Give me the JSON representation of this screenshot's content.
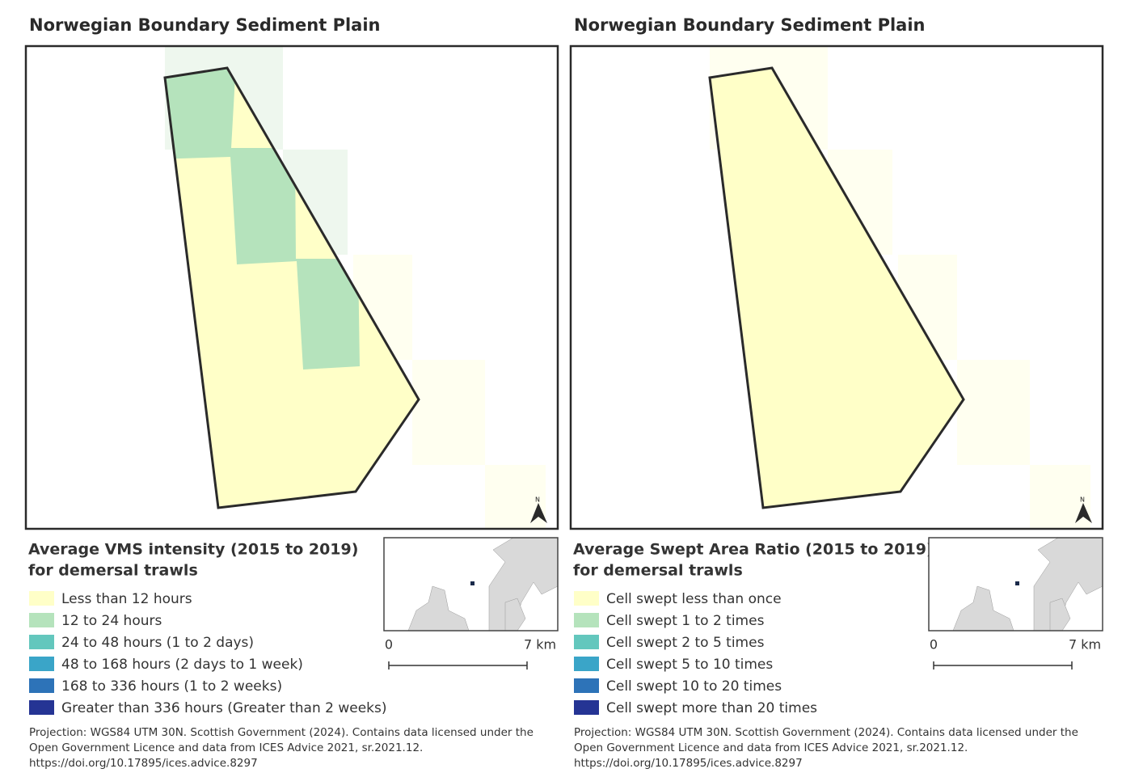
{
  "panels": [
    {
      "title": "Norwegian Boundary Sediment Plain",
      "legend": {
        "title": [
          "Average VMS intensity (2015 to 2019)",
          "for demersal trawls"
        ],
        "items": [
          {
            "label": "Less than 12 hours",
            "color": "#ffffc8"
          },
          {
            "label": "12 to 24 hours",
            "color": "#b5e3bc"
          },
          {
            "label": "24 to 48 hours (1 to 2 days)",
            "color": "#63c7bd"
          },
          {
            "label": "48 to 168 hours (2 days to 1 week)",
            "color": "#3aa5c8"
          },
          {
            "label": "168 to 336 hours (1 to 2 weeks)",
            "color": "#2d73b8"
          },
          {
            "label": "Greater than 336 hours (Greater than 2 weeks)",
            "color": "#253494"
          }
        ]
      },
      "scale": {
        "start": "0",
        "end": "7 km"
      },
      "north": "N",
      "source": [
        "Projection: WGS84 UTM 30N. Scottish Government (2024). Contains data licensed under the",
        "Open Government Licence and data from ICES Advice 2021, sr.2021.12.",
        "https://doi.org/10.17895/ices.advice.8297"
      ]
    },
    {
      "title": "Norwegian Boundary Sediment Plain",
      "legend": {
        "title": [
          "Average Swept Area Ratio (2015 to 2019)",
          "for demersal trawls"
        ],
        "items": [
          {
            "label": "Cell swept less than once",
            "color": "#ffffc8"
          },
          {
            "label": "Cell swept 1 to 2 times",
            "color": "#b5e3bc"
          },
          {
            "label": "Cell swept 2 to 5 times",
            "color": "#63c7bd"
          },
          {
            "label": "Cell swept 5 to 10 times",
            "color": "#3aa5c8"
          },
          {
            "label": "Cell swept 10 to 20 times",
            "color": "#2d73b8"
          },
          {
            "label": "Cell swept more than 20 times",
            "color": "#253494"
          }
        ]
      },
      "scale": {
        "start": "0",
        "end": "7 km"
      },
      "north": "N",
      "source": [
        "Projection: WGS84 UTM 30N. Scottish Government (2024). Contains data licensed under the",
        "Open Government Licence and data from ICES Advice 2021, sr.2021.12.",
        "https://doi.org/10.17895/ices.advice.8297"
      ]
    }
  ]
}
